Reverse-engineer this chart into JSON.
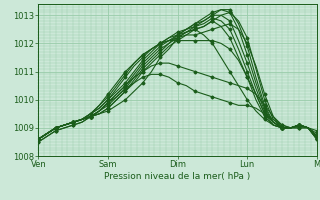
{
  "xlabel": "Pression niveau de la mer( hPa )",
  "background_color": "#cce8d8",
  "plot_bg_color": "#cce8d8",
  "grid_color": "#99ccaa",
  "line_color": "#1a5c1a",
  "ylim": [
    1008.0,
    1013.4
  ],
  "yticks": [
    1008,
    1009,
    1010,
    1011,
    1012,
    1013
  ],
  "xtick_labels": [
    "Ven",
    "Sam",
    "Dim",
    "Lun",
    "M"
  ],
  "xtick_positions": [
    0,
    24,
    48,
    72,
    96
  ],
  "total_hours": 96,
  "series": [
    [
      1008.6,
      1008.8,
      1009.0,
      1009.1,
      1009.2,
      1009.3,
      1009.4,
      1009.5,
      1009.6,
      1009.8,
      1010.0,
      1010.3,
      1010.6,
      1011.0,
      1011.5,
      1011.8,
      1012.2,
      1012.4,
      1012.5,
      1012.3,
      1012.0,
      1011.5,
      1011.0,
      1010.5,
      1010.0,
      1009.6,
      1009.3,
      1009.1,
      1009.0,
      1009.0,
      1009.1,
      1009.0,
      1008.9
    ],
    [
      1008.6,
      1008.8,
      1009.0,
      1009.1,
      1009.2,
      1009.3,
      1009.4,
      1009.5,
      1009.7,
      1010.0,
      1010.3,
      1010.6,
      1011.0,
      1011.3,
      1011.6,
      1011.9,
      1012.1,
      1012.3,
      1012.5,
      1012.6,
      1012.8,
      1012.6,
      1012.2,
      1011.5,
      1010.8,
      1010.0,
      1009.4,
      1009.1,
      1009.0,
      1009.0,
      1009.1,
      1009.0,
      1008.8
    ],
    [
      1008.6,
      1008.8,
      1009.0,
      1009.1,
      1009.2,
      1009.3,
      1009.4,
      1009.5,
      1009.7,
      1010.0,
      1010.3,
      1010.7,
      1011.1,
      1011.4,
      1011.7,
      1012.0,
      1012.2,
      1012.4,
      1012.6,
      1012.7,
      1012.9,
      1012.8,
      1012.5,
      1011.8,
      1011.0,
      1010.2,
      1009.5,
      1009.2,
      1009.0,
      1009.0,
      1009.1,
      1009.0,
      1008.7
    ],
    [
      1008.6,
      1008.8,
      1009.0,
      1009.1,
      1009.2,
      1009.3,
      1009.4,
      1009.6,
      1009.8,
      1010.1,
      1010.4,
      1010.8,
      1011.2,
      1011.5,
      1011.8,
      1012.0,
      1012.3,
      1012.5,
      1012.7,
      1012.8,
      1013.0,
      1013.0,
      1012.8,
      1012.1,
      1011.3,
      1010.4,
      1009.6,
      1009.2,
      1009.0,
      1009.0,
      1009.1,
      1009.0,
      1008.7
    ],
    [
      1008.6,
      1008.8,
      1009.0,
      1009.1,
      1009.2,
      1009.3,
      1009.4,
      1009.6,
      1009.9,
      1010.2,
      1010.5,
      1010.9,
      1011.3,
      1011.6,
      1011.9,
      1012.1,
      1012.3,
      1012.5,
      1012.7,
      1012.9,
      1013.1,
      1013.2,
      1013.1,
      1012.5,
      1011.6,
      1010.6,
      1009.7,
      1009.2,
      1009.0,
      1009.0,
      1009.1,
      1009.0,
      1008.7
    ],
    [
      1008.6,
      1008.8,
      1009.0,
      1009.1,
      1009.2,
      1009.3,
      1009.5,
      1009.7,
      1010.0,
      1010.3,
      1010.6,
      1011.0,
      1011.4,
      1011.7,
      1012.0,
      1012.2,
      1012.4,
      1012.5,
      1012.6,
      1012.8,
      1013.0,
      1013.2,
      1013.2,
      1012.7,
      1011.9,
      1010.8,
      1009.8,
      1009.2,
      1009.0,
      1009.0,
      1009.1,
      1009.0,
      1008.6
    ],
    [
      1008.6,
      1008.8,
      1009.0,
      1009.1,
      1009.2,
      1009.3,
      1009.5,
      1009.7,
      1010.0,
      1010.4,
      1010.8,
      1011.2,
      1011.5,
      1011.8,
      1012.0,
      1012.2,
      1012.3,
      1012.4,
      1012.5,
      1012.6,
      1012.8,
      1013.0,
      1013.1,
      1012.8,
      1012.2,
      1011.1,
      1010.0,
      1009.3,
      1009.0,
      1009.0,
      1009.1,
      1009.0,
      1008.6
    ],
    [
      1008.6,
      1008.8,
      1009.0,
      1009.1,
      1009.2,
      1009.3,
      1009.5,
      1009.8,
      1010.1,
      1010.5,
      1010.9,
      1011.3,
      1011.6,
      1011.8,
      1012.0,
      1012.1,
      1012.2,
      1012.3,
      1012.3,
      1012.4,
      1012.5,
      1012.6,
      1012.7,
      1012.5,
      1012.0,
      1011.2,
      1010.2,
      1009.4,
      1009.0,
      1009.0,
      1009.1,
      1009.0,
      1008.6
    ],
    [
      1008.6,
      1008.8,
      1009.0,
      1009.1,
      1009.2,
      1009.3,
      1009.5,
      1009.8,
      1010.2,
      1010.6,
      1011.0,
      1011.3,
      1011.6,
      1011.8,
      1012.0,
      1012.1,
      1012.1,
      1012.1,
      1012.1,
      1012.1,
      1012.1,
      1012.0,
      1011.8,
      1011.4,
      1010.8,
      1010.2,
      1009.5,
      1009.1,
      1009.0,
      1009.0,
      1009.1,
      1009.0,
      1008.6
    ],
    [
      1008.5,
      1008.7,
      1008.9,
      1009.0,
      1009.1,
      1009.2,
      1009.4,
      1009.6,
      1009.9,
      1010.2,
      1010.5,
      1010.8,
      1011.0,
      1011.2,
      1011.3,
      1011.3,
      1011.2,
      1011.1,
      1011.0,
      1010.9,
      1010.8,
      1010.7,
      1010.6,
      1010.5,
      1010.4,
      1010.2,
      1009.8,
      1009.4,
      1009.1,
      1009.0,
      1009.0,
      1009.0,
      1008.7
    ],
    [
      1008.5,
      1008.7,
      1008.9,
      1009.0,
      1009.1,
      1009.2,
      1009.4,
      1009.6,
      1009.9,
      1010.1,
      1010.4,
      1010.6,
      1010.8,
      1010.9,
      1010.9,
      1010.8,
      1010.6,
      1010.5,
      1010.3,
      1010.2,
      1010.1,
      1010.0,
      1009.9,
      1009.8,
      1009.8,
      1009.7,
      1009.5,
      1009.3,
      1009.1,
      1009.0,
      1009.0,
      1009.0,
      1008.7
    ]
  ],
  "marker": "D",
  "markersize": 1.5,
  "linewidth": 0.8
}
